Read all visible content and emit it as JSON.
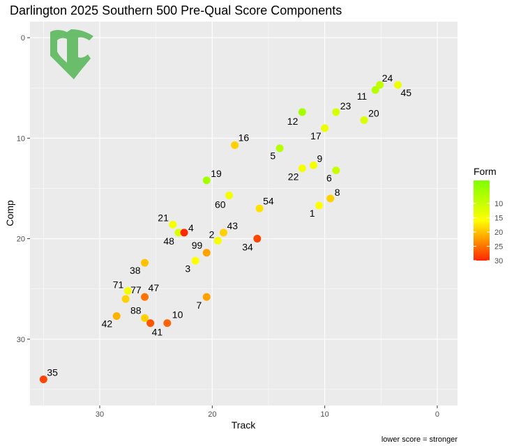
{
  "colors": {
    "panel_bg": "#ebebeb",
    "grid_major": "#ffffff",
    "gradient_low": "#7fff00",
    "gradient_mid": "#ffff00",
    "gradient_high": "#ff2600",
    "logo": "#5cb85c"
  },
  "logo": {
    "text": "BC",
    "icon": "bc-shield-logo"
  },
  "chart_data": {
    "type": "scatter",
    "title": "Darlington 2025 Southern 500 Pre-Qual Score Components",
    "xlabel": "Track",
    "ylabel": "Comp",
    "x_reversed": true,
    "y_reversed": true,
    "xlim": [
      36.2,
      -1.8
    ],
    "ylim": [
      -1.6,
      36.6
    ],
    "x_ticks": [
      30,
      20,
      10,
      0
    ],
    "y_ticks": [
      0,
      10,
      20,
      30
    ],
    "grid": true,
    "color_scale": {
      "name": "Form",
      "min": 2,
      "max": 30,
      "ticks": [
        10,
        15,
        20,
        25,
        30
      ],
      "low_color": "#7fff00",
      "mid_color": "#ffff00",
      "high_color": "#ff2600"
    },
    "caption": "lower score = stronger",
    "points": [
      {
        "label": "24",
        "track": 5.1,
        "comp": 4.7,
        "form": 9
      },
      {
        "label": "45",
        "track": 3.5,
        "comp": 4.7,
        "form": 14
      },
      {
        "label": "11",
        "track": 5.5,
        "comp": 5.2,
        "form": 8
      },
      {
        "label": "23",
        "track": 9.0,
        "comp": 7.4,
        "form": 12
      },
      {
        "label": "12",
        "track": 12.0,
        "comp": 7.4,
        "form": 6
      },
      {
        "label": "20",
        "track": 6.5,
        "comp": 8.2,
        "form": 12
      },
      {
        "label": "17",
        "track": 10.0,
        "comp": 9.0,
        "form": 14
      },
      {
        "label": "16",
        "track": 18.0,
        "comp": 10.7,
        "form": 19
      },
      {
        "label": "5",
        "track": 14.0,
        "comp": 11.0,
        "form": 8
      },
      {
        "label": "9",
        "track": 11.0,
        "comp": 12.7,
        "form": 15
      },
      {
        "label": "22",
        "track": 12.0,
        "comp": 13.0,
        "form": 15
      },
      {
        "label": "6",
        "track": 9.0,
        "comp": 13.2,
        "form": 10
      },
      {
        "label": "19",
        "track": 20.5,
        "comp": 14.2,
        "form": 6
      },
      {
        "label": "8",
        "track": 9.5,
        "comp": 16.0,
        "form": 19
      },
      {
        "label": "60",
        "track": 18.5,
        "comp": 15.7,
        "form": 15
      },
      {
        "label": "54",
        "track": 15.8,
        "comp": 17.0,
        "form": 18
      },
      {
        "label": "1",
        "track": 10.5,
        "comp": 16.7,
        "form": 16
      },
      {
        "label": "21",
        "track": 23.5,
        "comp": 18.6,
        "form": 15
      },
      {
        "label": "48",
        "track": 23.0,
        "comp": 19.4,
        "form": 12
      },
      {
        "label": "4",
        "track": 22.5,
        "comp": 19.4,
        "form": 30
      },
      {
        "label": "43",
        "track": 19.0,
        "comp": 19.4,
        "form": 19
      },
      {
        "label": "2",
        "track": 19.5,
        "comp": 20.2,
        "form": 15
      },
      {
        "label": "34",
        "track": 16.0,
        "comp": 20.0,
        "form": 28
      },
      {
        "label": "99",
        "track": 20.5,
        "comp": 21.4,
        "form": 22
      },
      {
        "label": "3",
        "track": 21.5,
        "comp": 22.2,
        "form": 16
      },
      {
        "label": "38",
        "track": 26.0,
        "comp": 22.4,
        "form": 20
      },
      {
        "label": "71",
        "track": 27.5,
        "comp": 25.2,
        "form": 15
      },
      {
        "label": "77",
        "track": 27.7,
        "comp": 26.0,
        "form": 19
      },
      {
        "label": "7",
        "track": 20.5,
        "comp": 25.8,
        "form": 22
      },
      {
        "label": "47",
        "track": 26.0,
        "comp": 25.8,
        "form": 25
      },
      {
        "label": "42",
        "track": 28.5,
        "comp": 27.7,
        "form": 21
      },
      {
        "label": "88",
        "track": 26.0,
        "comp": 27.9,
        "form": 19
      },
      {
        "label": "41",
        "track": 25.5,
        "comp": 28.4,
        "form": 27
      },
      {
        "label": "10",
        "track": 24.0,
        "comp": 28.4,
        "form": 26
      },
      {
        "label": "35",
        "track": 35.0,
        "comp": 34.0,
        "form": 28
      }
    ]
  }
}
